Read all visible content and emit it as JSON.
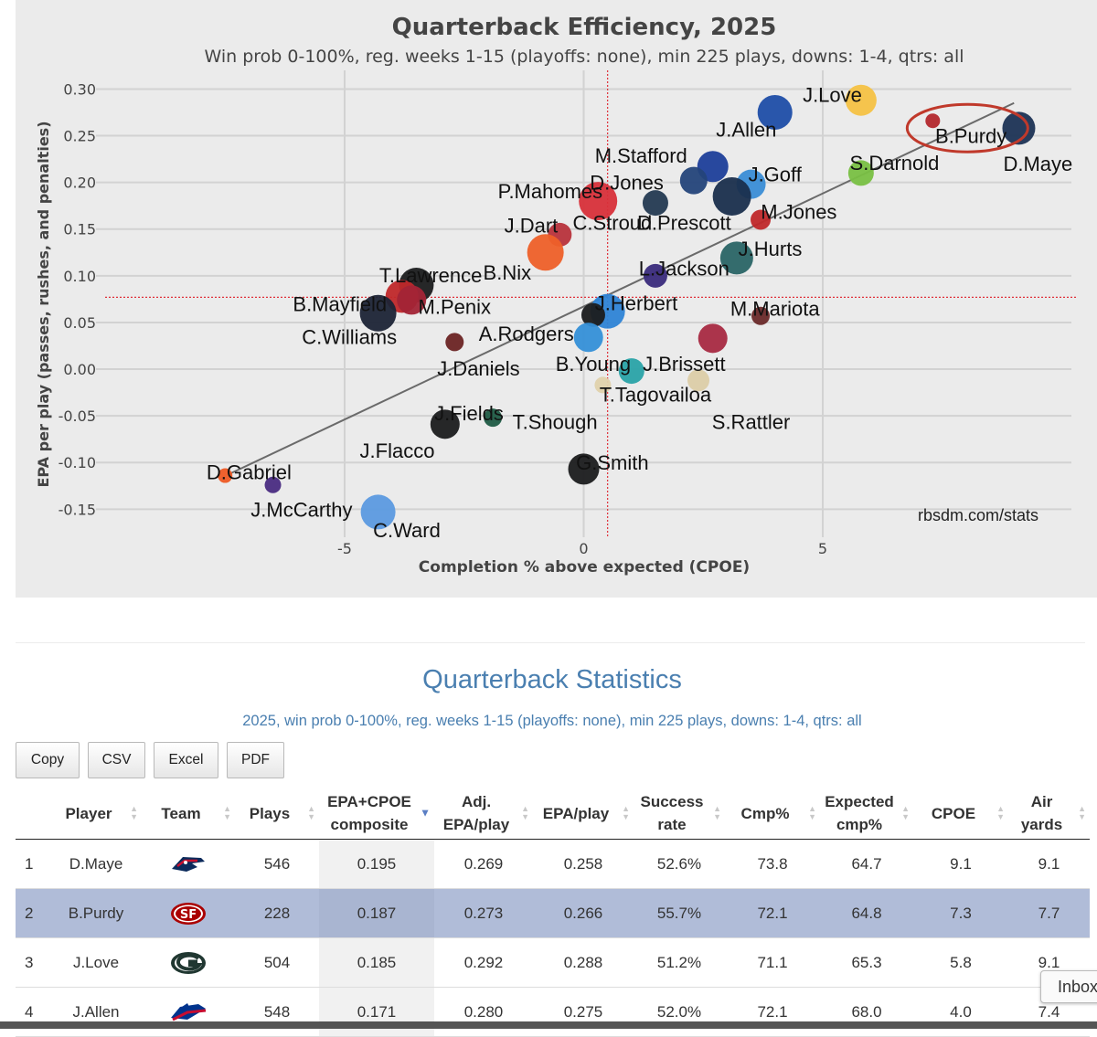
{
  "chart_data": {
    "type": "scatter",
    "title": "Quarterback Efficiency, 2025",
    "subtitle": "Win prob 0-100%, reg. weeks 1-15 (playoffs: none), min 225 plays, downs: 1-4, qtrs: all",
    "xlabel": "Completion % above expected (CPOE)",
    "ylabel": "EPA per play (passes, rushes, and penalties)",
    "xlim": [
      -10.2,
      10.2
    ],
    "ylim": [
      -0.18,
      0.32
    ],
    "xticks": [
      "-5",
      "0",
      "5"
    ],
    "yticks": [
      "0.30",
      "0.25",
      "0.20",
      "0.15",
      "0.10",
      "0.05",
      "0.00",
      "-0.05",
      "-0.10",
      "-0.15"
    ],
    "mean_x": 0.5,
    "mean_y": 0.077,
    "trendline": {
      "x1": -7.4,
      "y1": -0.112,
      "x2": 9.0,
      "y2": 0.285
    },
    "highlight": "B.Purdy",
    "source": "rbsdm.com/stats",
    "points": [
      {
        "name": "D.Maye",
        "x": 9.1,
        "y": 0.258,
        "color": "#1c3355",
        "r": 18
      },
      {
        "name": "B.Purdy",
        "x": 7.3,
        "y": 0.266,
        "color": "#b3282d",
        "r": 8
      },
      {
        "name": "J.Love",
        "x": 5.8,
        "y": 0.288,
        "color": "#f6c244",
        "r": 17
      },
      {
        "name": "J.Allen",
        "x": 4.0,
        "y": 0.275,
        "color": "#1f4ea8",
        "r": 19
      },
      {
        "name": "S.Darnold",
        "x": 5.8,
        "y": 0.21,
        "color": "#79c043",
        "r": 14
      },
      {
        "name": "J.Goff",
        "x": 3.5,
        "y": 0.198,
        "color": "#3a8dd6",
        "r": 16
      },
      {
        "name": "M.Stafford",
        "x": 2.7,
        "y": 0.217,
        "color": "#1d3f9a",
        "r": 17
      },
      {
        "name": "D.Jones",
        "x": 2.3,
        "y": 0.202,
        "color": "#24447a",
        "r": 15
      },
      {
        "name": "D.Prescott",
        "x": 3.1,
        "y": 0.185,
        "color": "#1a2f4d",
        "r": 21
      },
      {
        "name": "C.Stroud",
        "x": 1.5,
        "y": 0.178,
        "color": "#243a52",
        "r": 14
      },
      {
        "name": "M.Jones",
        "x": 3.7,
        "y": 0.16,
        "color": "#c0282a",
        "r": 11
      },
      {
        "name": "P.Mahomes",
        "x": 0.3,
        "y": 0.18,
        "color": "#d8303a",
        "r": 21
      },
      {
        "name": "J.Dart",
        "x": -0.5,
        "y": 0.144,
        "color": "#b8333c",
        "r": 13
      },
      {
        "name": "B.Nix",
        "x": -0.8,
        "y": 0.125,
        "color": "#ee6029",
        "r": 20
      },
      {
        "name": "J.Hurts",
        "x": 3.2,
        "y": 0.119,
        "color": "#2a6566",
        "r": 18
      },
      {
        "name": "L.Jackson",
        "x": 1.5,
        "y": 0.1,
        "color": "#3a2b7c",
        "r": 13
      },
      {
        "name": "T.Lawrence",
        "x": -3.5,
        "y": 0.09,
        "color": "#1b1c1e",
        "r": 19
      },
      {
        "name": "B.Mayfield",
        "x": -3.8,
        "y": 0.078,
        "color": "#c0282a",
        "r": 18
      },
      {
        "name": "M.Penix",
        "x": -3.6,
        "y": 0.074,
        "color": "#a22436",
        "r": 16
      },
      {
        "name": "C.Williams",
        "x": -4.3,
        "y": 0.06,
        "color": "#1c2436",
        "r": 20
      },
      {
        "name": "J.Herbert",
        "x": 0.5,
        "y": 0.062,
        "color": "#2e84d6",
        "r": 19
      },
      {
        "name": "A.Rodgers",
        "x": 0.2,
        "y": 0.058,
        "color": "#1b1c1e",
        "r": 13
      },
      {
        "name": "M.Mariota",
        "x": 3.7,
        "y": 0.057,
        "color": "#6a2a2a",
        "r": 10
      },
      {
        "name": "J.Brissett",
        "x": 2.7,
        "y": 0.033,
        "color": "#a82a42",
        "r": 16
      },
      {
        "name": "B.Young",
        "x": 0.1,
        "y": 0.034,
        "color": "#3590d8",
        "r": 16
      },
      {
        "name": "J.Daniels",
        "x": -2.7,
        "y": 0.029,
        "color": "#6b2424",
        "r": 10
      },
      {
        "name": "T.Tagovailoa",
        "x": 1.0,
        "y": -0.002,
        "color": "#2aa3a8",
        "r": 14
      },
      {
        "name": "S.Rattler",
        "x": 2.4,
        "y": -0.012,
        "color": "#dccda8",
        "r": 12
      },
      {
        "name": "T.Shough",
        "x": -1.9,
        "y": -0.052,
        "color": "#1f5b45",
        "r": 10
      },
      {
        "name": "J.Fields",
        "x": 0.4,
        "y": -0.017,
        "color": "#e0d2ac",
        "r": 9
      },
      {
        "name": "J.Flacco",
        "x": -2.9,
        "y": -0.059,
        "color": "#1b1c1e",
        "r": 16
      },
      {
        "name": "G.Smith",
        "x": 0.0,
        "y": -0.107,
        "color": "#1b1c1e",
        "r": 17
      },
      {
        "name": "D.Gabriel",
        "x": -7.5,
        "y": -0.114,
        "color": "#ee5a24",
        "r": 8
      },
      {
        "name": "J.McCarthy",
        "x": -6.5,
        "y": -0.124,
        "color": "#4a2c82",
        "r": 9
      },
      {
        "name": "C.Ward",
        "x": -4.3,
        "y": -0.153,
        "color": "#5c9ae0",
        "r": 19
      }
    ],
    "labels": [
      {
        "text": "J.Love",
        "x": 5.2,
        "y": 0.294
      },
      {
        "text": "J.Allen",
        "x": 3.4,
        "y": 0.257
      },
      {
        "text": "B.Purdy",
        "x": 8.1,
        "y": 0.25
      },
      {
        "text": "M.Stafford",
        "x": 1.2,
        "y": 0.229
      },
      {
        "text": "D.Maye",
        "x": 9.5,
        "y": 0.22
      },
      {
        "text": "S.Darnold",
        "x": 6.5,
        "y": 0.221
      },
      {
        "text": "J.Goff",
        "x": 4.0,
        "y": 0.209
      },
      {
        "text": "D.Jones",
        "x": 0.9,
        "y": 0.2
      },
      {
        "text": "P.Mahomes",
        "x": -0.7,
        "y": 0.191
      },
      {
        "text": "M.Jones",
        "x": 4.5,
        "y": 0.169
      },
      {
        "text": "J.Dart",
        "x": -1.1,
        "y": 0.154
      },
      {
        "text": "C.Stroud",
        "x": 0.6,
        "y": 0.157
      },
      {
        "text": "D.Prescott",
        "x": 2.1,
        "y": 0.157
      },
      {
        "text": "J.Hurts",
        "x": 3.9,
        "y": 0.129
      },
      {
        "text": "L.Jackson",
        "x": 2.1,
        "y": 0.108
      },
      {
        "text": "T.Lawrence",
        "x": -3.2,
        "y": 0.101
      },
      {
        "text": "B.Nix",
        "x": -1.6,
        "y": 0.104
      },
      {
        "text": "B.Mayfield",
        "x": -5.1,
        "y": 0.07
      },
      {
        "text": "M.Penix",
        "x": -2.7,
        "y": 0.067
      },
      {
        "text": "J.Herbert",
        "x": 1.1,
        "y": 0.071
      },
      {
        "text": "M.Mariota",
        "x": 4.0,
        "y": 0.065
      },
      {
        "text": "C.Williams",
        "x": -4.9,
        "y": 0.035
      },
      {
        "text": "A.Rodgers",
        "x": -1.2,
        "y": 0.038
      },
      {
        "text": "B.Young",
        "x": 0.2,
        "y": 0.006
      },
      {
        "text": "J.Brissett",
        "x": 2.1,
        "y": 0.006
      },
      {
        "text": "J.Daniels",
        "x": -2.2,
        "y": 0.001
      },
      {
        "text": "T.Tagovailoa",
        "x": 1.5,
        "y": -0.027
      },
      {
        "text": "J.Fields",
        "x": -2.4,
        "y": -0.047
      },
      {
        "text": "T.Shough",
        "x": -0.6,
        "y": -0.056
      },
      {
        "text": "S.Rattler",
        "x": 3.5,
        "y": -0.056
      },
      {
        "text": "J.Flacco",
        "x": -3.9,
        "y": -0.087
      },
      {
        "text": "G.Smith",
        "x": 0.6,
        "y": -0.1
      },
      {
        "text": "D.Gabriel",
        "x": -7.0,
        "y": -0.11
      },
      {
        "text": "J.McCarthy",
        "x": -5.9,
        "y": -0.15
      },
      {
        "text": "C.Ward",
        "x": -3.7,
        "y": -0.172
      }
    ]
  },
  "stats": {
    "title": "Quarterback Statistics",
    "subtitle": "2025, win prob 0-100%, reg. weeks 1-15 (playoffs: none), min 225 plays, downs: 1-4, qtrs: all",
    "buttons": [
      "Copy",
      "CSV",
      "Excel",
      "PDF"
    ],
    "columns": [
      {
        "top": "",
        "bottom": "Player"
      },
      {
        "top": "",
        "bottom": "Team"
      },
      {
        "top": "",
        "bottom": "Plays"
      },
      {
        "top": "EPA+CPOE",
        "bottom": "composite"
      },
      {
        "top": "Adj.",
        "bottom": "EPA/play"
      },
      {
        "top": "",
        "bottom": "EPA/play"
      },
      {
        "top": "Success",
        "bottom": "rate"
      },
      {
        "top": "",
        "bottom": "Cmp%"
      },
      {
        "top": "Expected",
        "bottom": "cmp%"
      },
      {
        "top": "",
        "bottom": "CPOE"
      },
      {
        "top": "Air",
        "bottom": "yards"
      }
    ],
    "rows": [
      {
        "rank": "1",
        "player": "D.Maye",
        "team": "patriots-logo",
        "plays": "546",
        "composite": "0.195",
        "adj_epa": "0.269",
        "epa": "0.258",
        "success": "52.6%",
        "cmp": "73.8",
        "exp_cmp": "64.7",
        "cpoe": "9.1",
        "air": "9.1"
      },
      {
        "rank": "2",
        "player": "B.Purdy",
        "team": "49ers-logo",
        "plays": "228",
        "composite": "0.187",
        "adj_epa": "0.273",
        "epa": "0.266",
        "success": "55.7%",
        "cmp": "72.1",
        "exp_cmp": "64.8",
        "cpoe": "7.3",
        "air": "7.7"
      },
      {
        "rank": "3",
        "player": "J.Love",
        "team": "packers-logo",
        "plays": "504",
        "composite": "0.185",
        "adj_epa": "0.292",
        "epa": "0.288",
        "success": "51.2%",
        "cmp": "71.1",
        "exp_cmp": "65.3",
        "cpoe": "5.8",
        "air": "9.1"
      },
      {
        "rank": "4",
        "player": "J.Allen",
        "team": "bills-logo",
        "plays": "548",
        "composite": "0.171",
        "adj_epa": "0.280",
        "epa": "0.275",
        "success": "52.0%",
        "cmp": "72.1",
        "exp_cmp": "68.0",
        "cpoe": "4.0",
        "air": "7.4"
      }
    ],
    "logo_text": {
      "49ers-logo": "SF"
    }
  },
  "inbox_label": "Inbox"
}
